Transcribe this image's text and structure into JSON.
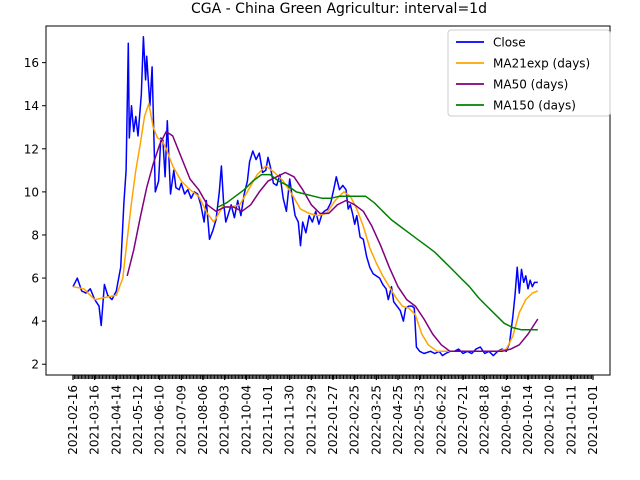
{
  "chart_data": {
    "type": "line",
    "title": "CGA - China Green Agricultur: interval=1d",
    "xlabel": "",
    "ylabel": "",
    "ylim": [
      1.5,
      17.7
    ],
    "yticks": [
      2,
      4,
      6,
      8,
      10,
      12,
      14,
      16
    ],
    "grid": false,
    "legend_position": "top-right",
    "x_tick_labels": [
      "2021-02-16",
      "2021-03-16",
      "2021-04-14",
      "2021-05-12",
      "2021-06-10",
      "2021-07-09",
      "2021-08-06",
      "2021-09-03",
      "2021-10-04",
      "2021-11-01",
      "2021-11-30",
      "2021-12-29",
      "2022-01-27",
      "2022-02-25",
      "2022-03-25",
      "2022-04-25",
      "2022-05-23",
      "2022-06-22",
      "2022-07-21",
      "2022-08-18",
      "2020-09-16",
      "2020-10-14",
      "2020-12-10",
      "2021-01-11",
      "2021-01-01"
    ],
    "series": [
      {
        "name": "Close",
        "color": "#0000ff",
        "values": [
          [
            0,
            5.6
          ],
          [
            0.2,
            6.0
          ],
          [
            0.4,
            5.4
          ],
          [
            0.6,
            5.3
          ],
          [
            0.8,
            5.5
          ],
          [
            1.0,
            5.0
          ],
          [
            1.2,
            4.7
          ],
          [
            1.3,
            3.8
          ],
          [
            1.45,
            5.7
          ],
          [
            1.6,
            5.2
          ],
          [
            1.8,
            5.0
          ],
          [
            2.0,
            5.4
          ],
          [
            2.2,
            6.5
          ],
          [
            2.35,
            9.5
          ],
          [
            2.45,
            11.0
          ],
          [
            2.55,
            16.9
          ],
          [
            2.6,
            12.5
          ],
          [
            2.7,
            14.0
          ],
          [
            2.8,
            12.8
          ],
          [
            2.9,
            13.5
          ],
          [
            3.0,
            12.6
          ],
          [
            3.15,
            14.5
          ],
          [
            3.25,
            17.2
          ],
          [
            3.35,
            15.2
          ],
          [
            3.4,
            16.3
          ],
          [
            3.55,
            14.0
          ],
          [
            3.65,
            15.8
          ],
          [
            3.8,
            10.0
          ],
          [
            3.95,
            10.5
          ],
          [
            4.05,
            12.5
          ],
          [
            4.15,
            12.4
          ],
          [
            4.25,
            10.7
          ],
          [
            4.35,
            13.3
          ],
          [
            4.5,
            9.9
          ],
          [
            4.65,
            11.0
          ],
          [
            4.75,
            10.2
          ],
          [
            4.9,
            10.1
          ],
          [
            5.0,
            10.4
          ],
          [
            5.15,
            9.9
          ],
          [
            5.3,
            10.1
          ],
          [
            5.45,
            9.7
          ],
          [
            5.6,
            10.0
          ],
          [
            5.75,
            9.9
          ],
          [
            5.9,
            9.4
          ],
          [
            6.05,
            8.6
          ],
          [
            6.15,
            9.6
          ],
          [
            6.3,
            7.8
          ],
          [
            6.45,
            8.2
          ],
          [
            6.6,
            8.7
          ],
          [
            6.75,
            10.0
          ],
          [
            6.85,
            11.2
          ],
          [
            6.95,
            9.5
          ],
          [
            7.05,
            8.6
          ],
          [
            7.15,
            8.9
          ],
          [
            7.3,
            9.4
          ],
          [
            7.45,
            8.8
          ],
          [
            7.6,
            9.6
          ],
          [
            7.75,
            8.9
          ],
          [
            7.9,
            9.9
          ],
          [
            8.05,
            10.5
          ],
          [
            8.15,
            11.4
          ],
          [
            8.3,
            11.9
          ],
          [
            8.45,
            11.5
          ],
          [
            8.6,
            11.8
          ],
          [
            8.75,
            10.9
          ],
          [
            8.9,
            11.0
          ],
          [
            9.0,
            11.6
          ],
          [
            9.1,
            11.2
          ],
          [
            9.25,
            10.4
          ],
          [
            9.4,
            10.3
          ],
          [
            9.55,
            10.8
          ],
          [
            9.7,
            9.7
          ],
          [
            9.85,
            9.1
          ],
          [
            10.0,
            10.6
          ],
          [
            10.1,
            9.9
          ],
          [
            10.25,
            8.9
          ],
          [
            10.4,
            8.6
          ],
          [
            10.5,
            7.5
          ],
          [
            10.6,
            8.6
          ],
          [
            10.75,
            8.1
          ],
          [
            10.9,
            8.9
          ],
          [
            11.05,
            8.6
          ],
          [
            11.2,
            9.1
          ],
          [
            11.35,
            8.5
          ],
          [
            11.5,
            9.0
          ],
          [
            11.6,
            9.1
          ],
          [
            11.75,
            9.2
          ],
          [
            11.9,
            9.5
          ],
          [
            12.05,
            10.2
          ],
          [
            12.15,
            10.7
          ],
          [
            12.3,
            10.1
          ],
          [
            12.45,
            10.3
          ],
          [
            12.6,
            10.1
          ],
          [
            12.7,
            9.2
          ],
          [
            12.8,
            9.4
          ],
          [
            12.9,
            9.0
          ],
          [
            13.0,
            8.5
          ],
          [
            13.1,
            8.9
          ],
          [
            13.25,
            7.9
          ],
          [
            13.4,
            7.8
          ],
          [
            13.55,
            7.0
          ],
          [
            13.7,
            6.5
          ],
          [
            13.85,
            6.2
          ],
          [
            14.0,
            6.1
          ],
          [
            14.15,
            6.0
          ],
          [
            14.3,
            5.7
          ],
          [
            14.45,
            5.5
          ],
          [
            14.55,
            5.0
          ],
          [
            14.7,
            5.6
          ],
          [
            14.8,
            4.9
          ],
          [
            14.95,
            4.7
          ],
          [
            15.1,
            4.5
          ],
          [
            15.25,
            4.0
          ],
          [
            15.35,
            4.6
          ],
          [
            15.5,
            4.7
          ],
          [
            15.65,
            4.7
          ],
          [
            15.75,
            4.6
          ],
          [
            15.85,
            2.8
          ],
          [
            16.0,
            2.6
          ],
          [
            16.2,
            2.5
          ],
          [
            16.5,
            2.6
          ],
          [
            16.7,
            2.5
          ],
          [
            16.9,
            2.6
          ],
          [
            17.05,
            2.4
          ],
          [
            17.2,
            2.5
          ],
          [
            17.4,
            2.6
          ],
          [
            17.6,
            2.6
          ],
          [
            17.8,
            2.7
          ],
          [
            18.0,
            2.5
          ],
          [
            18.2,
            2.6
          ],
          [
            18.4,
            2.5
          ],
          [
            18.6,
            2.7
          ],
          [
            18.8,
            2.8
          ],
          [
            19.0,
            2.5
          ],
          [
            19.2,
            2.6
          ],
          [
            19.4,
            2.4
          ],
          [
            19.6,
            2.6
          ],
          [
            19.8,
            2.7
          ],
          [
            20.0,
            2.6
          ],
          [
            20.15,
            3.0
          ],
          [
            20.3,
            4.2
          ],
          [
            20.4,
            5.2
          ],
          [
            20.5,
            6.5
          ],
          [
            20.6,
            5.3
          ],
          [
            20.7,
            6.4
          ],
          [
            20.8,
            5.8
          ],
          [
            20.9,
            6.1
          ],
          [
            21.0,
            5.5
          ],
          [
            21.1,
            5.9
          ],
          [
            21.2,
            5.6
          ],
          [
            21.3,
            5.8
          ],
          [
            21.45,
            5.8
          ]
        ]
      },
      {
        "name": "MA21exp (days)",
        "color": "#ffa500",
        "values": [
          [
            0,
            5.6
          ],
          [
            0.5,
            5.5
          ],
          [
            1.0,
            5.0
          ],
          [
            1.5,
            5.1
          ],
          [
            2.0,
            5.2
          ],
          [
            2.3,
            6.0
          ],
          [
            2.5,
            7.8
          ],
          [
            2.7,
            9.5
          ],
          [
            2.9,
            11.0
          ],
          [
            3.1,
            12.2
          ],
          [
            3.3,
            13.5
          ],
          [
            3.5,
            14.1
          ],
          [
            3.7,
            13.0
          ],
          [
            3.9,
            12.5
          ],
          [
            4.1,
            12.4
          ],
          [
            4.3,
            12.0
          ],
          [
            4.6,
            11.2
          ],
          [
            5.0,
            10.5
          ],
          [
            5.4,
            10.1
          ],
          [
            5.8,
            9.8
          ],
          [
            6.2,
            9.0
          ],
          [
            6.5,
            8.6
          ],
          [
            6.9,
            9.3
          ],
          [
            7.3,
            9.3
          ],
          [
            7.7,
            9.4
          ],
          [
            8.1,
            10.1
          ],
          [
            8.5,
            10.8
          ],
          [
            8.9,
            11.2
          ],
          [
            9.3,
            10.9
          ],
          [
            9.7,
            10.5
          ],
          [
            10.1,
            9.9
          ],
          [
            10.5,
            9.2
          ],
          [
            10.9,
            9.0
          ],
          [
            11.3,
            8.9
          ],
          [
            11.7,
            9.0
          ],
          [
            12.1,
            9.6
          ],
          [
            12.5,
            10.0
          ],
          [
            12.8,
            9.8
          ],
          [
            13.1,
            9.2
          ],
          [
            13.4,
            8.4
          ],
          [
            13.7,
            7.4
          ],
          [
            14.0,
            6.7
          ],
          [
            14.3,
            6.1
          ],
          [
            14.6,
            5.6
          ],
          [
            14.9,
            5.1
          ],
          [
            15.2,
            4.7
          ],
          [
            15.5,
            4.6
          ],
          [
            15.8,
            4.3
          ],
          [
            16.1,
            3.4
          ],
          [
            16.4,
            2.9
          ],
          [
            16.8,
            2.6
          ],
          [
            17.2,
            2.6
          ],
          [
            17.6,
            2.6
          ],
          [
            18.0,
            2.6
          ],
          [
            18.4,
            2.6
          ],
          [
            18.8,
            2.6
          ],
          [
            19.2,
            2.6
          ],
          [
            19.6,
            2.6
          ],
          [
            20.0,
            2.7
          ],
          [
            20.3,
            3.3
          ],
          [
            20.6,
            4.4
          ],
          [
            20.9,
            5.0
          ],
          [
            21.2,
            5.3
          ],
          [
            21.45,
            5.4
          ]
        ]
      },
      {
        "name": "MA50 (days)",
        "color": "#800080",
        "values": [
          [
            2.5,
            6.1
          ],
          [
            2.8,
            7.3
          ],
          [
            3.1,
            8.8
          ],
          [
            3.4,
            10.2
          ],
          [
            3.7,
            11.3
          ],
          [
            4.0,
            12.2
          ],
          [
            4.3,
            12.8
          ],
          [
            4.6,
            12.6
          ],
          [
            5.0,
            11.6
          ],
          [
            5.4,
            10.6
          ],
          [
            5.8,
            10.1
          ],
          [
            6.2,
            9.4
          ],
          [
            6.6,
            9.1
          ],
          [
            7.0,
            9.3
          ],
          [
            7.4,
            9.3
          ],
          [
            7.8,
            9.1
          ],
          [
            8.2,
            9.4
          ],
          [
            8.6,
            10.0
          ],
          [
            9.0,
            10.5
          ],
          [
            9.4,
            10.7
          ],
          [
            9.8,
            10.9
          ],
          [
            10.2,
            10.7
          ],
          [
            10.6,
            10.1
          ],
          [
            11.0,
            9.4
          ],
          [
            11.4,
            9.0
          ],
          [
            11.8,
            9.0
          ],
          [
            12.2,
            9.4
          ],
          [
            12.6,
            9.6
          ],
          [
            13.0,
            9.4
          ],
          [
            13.4,
            9.1
          ],
          [
            13.8,
            8.4
          ],
          [
            14.2,
            7.5
          ],
          [
            14.6,
            6.5
          ],
          [
            15.0,
            5.6
          ],
          [
            15.4,
            5.0
          ],
          [
            15.8,
            4.7
          ],
          [
            16.2,
            4.1
          ],
          [
            16.6,
            3.4
          ],
          [
            17.0,
            2.9
          ],
          [
            17.4,
            2.6
          ],
          [
            17.8,
            2.6
          ],
          [
            18.2,
            2.6
          ],
          [
            18.6,
            2.6
          ],
          [
            19.0,
            2.6
          ],
          [
            19.4,
            2.6
          ],
          [
            19.8,
            2.6
          ],
          [
            20.2,
            2.7
          ],
          [
            20.6,
            2.9
          ],
          [
            21.0,
            3.4
          ],
          [
            21.45,
            4.1
          ]
        ]
      },
      {
        "name": "MA150 (days)",
        "color": "#008000",
        "values": [
          [
            6.7,
            9.3
          ],
          [
            7.1,
            9.5
          ],
          [
            7.5,
            9.8
          ],
          [
            7.9,
            10.1
          ],
          [
            8.3,
            10.5
          ],
          [
            8.7,
            10.8
          ],
          [
            9.1,
            10.8
          ],
          [
            9.5,
            10.5
          ],
          [
            9.9,
            10.3
          ],
          [
            10.3,
            10.0
          ],
          [
            10.7,
            9.9
          ],
          [
            11.1,
            9.8
          ],
          [
            11.5,
            9.7
          ],
          [
            11.9,
            9.7
          ],
          [
            12.3,
            9.8
          ],
          [
            12.7,
            9.8
          ],
          [
            13.1,
            9.8
          ],
          [
            13.5,
            9.8
          ],
          [
            13.9,
            9.5
          ],
          [
            14.3,
            9.1
          ],
          [
            14.7,
            8.7
          ],
          [
            15.1,
            8.4
          ],
          [
            15.5,
            8.1
          ],
          [
            15.9,
            7.8
          ],
          [
            16.3,
            7.5
          ],
          [
            16.7,
            7.2
          ],
          [
            17.1,
            6.8
          ],
          [
            17.5,
            6.4
          ],
          [
            17.9,
            6.0
          ],
          [
            18.3,
            5.6
          ],
          [
            18.7,
            5.1
          ],
          [
            19.1,
            4.7
          ],
          [
            19.5,
            4.3
          ],
          [
            19.9,
            3.9
          ],
          [
            20.3,
            3.7
          ],
          [
            20.7,
            3.6
          ],
          [
            21.1,
            3.6
          ],
          [
            21.45,
            3.6
          ]
        ]
      }
    ]
  }
}
